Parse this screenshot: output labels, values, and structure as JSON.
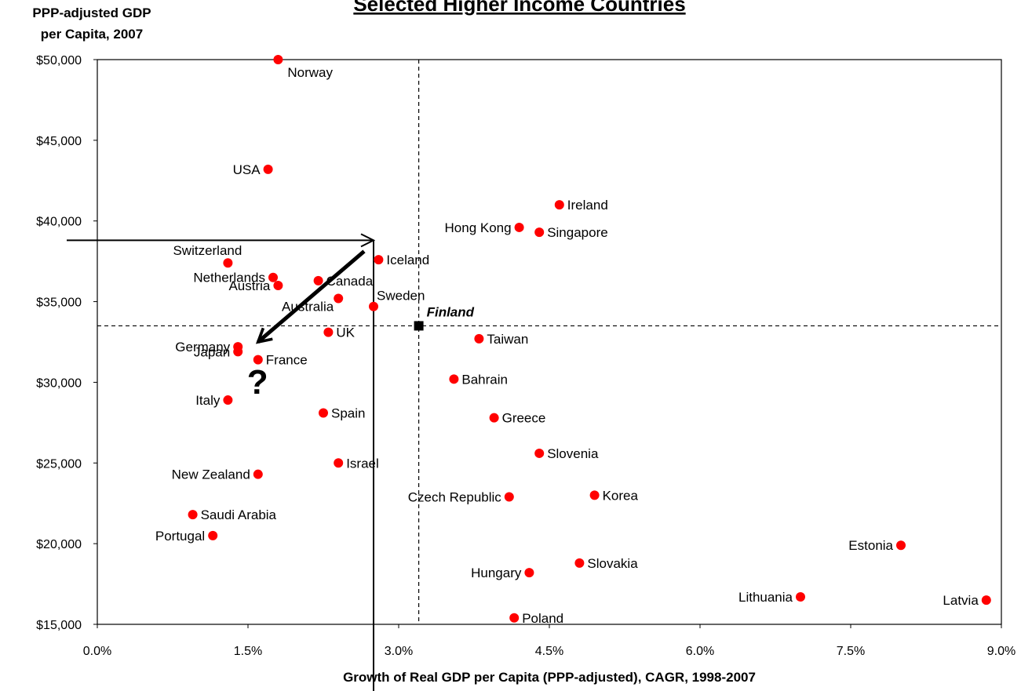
{
  "chart_data": {
    "type": "scatter",
    "title": "Selected Higher Income Countries",
    "ylabel_lines": [
      "PPP-adjusted GDP",
      "per Capita, 2007"
    ],
    "xlabel": "Growth of Real GDP per Capita (PPP-adjusted),  CAGR, 1998-2007",
    "xlim": [
      0.0,
      9.0
    ],
    "ylim": [
      15000,
      50000
    ],
    "x_ticks": [
      "0.0%",
      "1.5%",
      "3.0%",
      "4.5%",
      "6.0%",
      "7.5%",
      "9.0%"
    ],
    "y_ticks": [
      "$15,000",
      "$20,000",
      "$25,000",
      "$30,000",
      "$35,000",
      "$40,000",
      "$45,000",
      "$50,000"
    ],
    "grid": false,
    "point_color": "#ff0000",
    "highlight_color": "#000000",
    "reference_lines": {
      "x": 3.2,
      "y": 33500,
      "style": "dashed"
    },
    "points": [
      {
        "name": "Norway",
        "x": 1.8,
        "y": 50000,
        "label_pos": "below-right"
      },
      {
        "name": "USA",
        "x": 1.7,
        "y": 43200,
        "label_pos": "left"
      },
      {
        "name": "Ireland",
        "x": 4.6,
        "y": 41000,
        "label_pos": "right"
      },
      {
        "name": "Hong Kong",
        "x": 4.2,
        "y": 39600,
        "label_pos": "left"
      },
      {
        "name": "Singapore",
        "x": 4.4,
        "y": 39300,
        "label_pos": "right"
      },
      {
        "name": "Switzerland",
        "x": 1.3,
        "y": 37400,
        "label_pos": "above-left"
      },
      {
        "name": "Iceland",
        "x": 2.8,
        "y": 37600,
        "label_pos": "right"
      },
      {
        "name": "Netherlands",
        "x": 1.75,
        "y": 36500,
        "label_pos": "left"
      },
      {
        "name": "Canada",
        "x": 2.2,
        "y": 36300,
        "label_pos": "right"
      },
      {
        "name": "Austria",
        "x": 1.8,
        "y": 36000,
        "label_pos": "left"
      },
      {
        "name": "Australia",
        "x": 2.4,
        "y": 35200,
        "label_pos": "below-left"
      },
      {
        "name": "Sweden",
        "x": 2.75,
        "y": 34700,
        "label_pos": "above-right"
      },
      {
        "name": "UK",
        "x": 2.3,
        "y": 33100,
        "label_pos": "right"
      },
      {
        "name": "Taiwan",
        "x": 3.8,
        "y": 32700,
        "label_pos": "right"
      },
      {
        "name": "Germany",
        "x": 1.4,
        "y": 32200,
        "label_pos": "left"
      },
      {
        "name": "Japan",
        "x": 1.4,
        "y": 31900,
        "label_pos": "left"
      },
      {
        "name": "France",
        "x": 1.6,
        "y": 31400,
        "label_pos": "right"
      },
      {
        "name": "Bahrain",
        "x": 3.55,
        "y": 30200,
        "label_pos": "right"
      },
      {
        "name": "Italy",
        "x": 1.3,
        "y": 28900,
        "label_pos": "left"
      },
      {
        "name": "Spain",
        "x": 2.25,
        "y": 28100,
        "label_pos": "right"
      },
      {
        "name": "Greece",
        "x": 3.95,
        "y": 27800,
        "label_pos": "right"
      },
      {
        "name": "Slovenia",
        "x": 4.4,
        "y": 25600,
        "label_pos": "right"
      },
      {
        "name": "Israel",
        "x": 2.4,
        "y": 25000,
        "label_pos": "right"
      },
      {
        "name": "New Zealand",
        "x": 1.6,
        "y": 24300,
        "label_pos": "left"
      },
      {
        "name": "Czech Republic",
        "x": 4.1,
        "y": 22900,
        "label_pos": "left"
      },
      {
        "name": "Korea",
        "x": 4.95,
        "y": 23000,
        "label_pos": "right"
      },
      {
        "name": "Saudi Arabia",
        "x": 0.95,
        "y": 21800,
        "label_pos": "right"
      },
      {
        "name": "Portugal",
        "x": 1.15,
        "y": 20500,
        "label_pos": "left"
      },
      {
        "name": "Estonia",
        "x": 8.0,
        "y": 19900,
        "label_pos": "left"
      },
      {
        "name": "Slovakia",
        "x": 4.8,
        "y": 18800,
        "label_pos": "right"
      },
      {
        "name": "Hungary",
        "x": 4.3,
        "y": 18200,
        "label_pos": "left"
      },
      {
        "name": "Lithuania",
        "x": 7.0,
        "y": 16700,
        "label_pos": "left"
      },
      {
        "name": "Latvia",
        "x": 8.85,
        "y": 16500,
        "label_pos": "left"
      },
      {
        "name": "Poland",
        "x": 4.15,
        "y": 15400,
        "label_pos": "right"
      }
    ],
    "highlight": {
      "name": "Finland",
      "x": 3.2,
      "y": 33500,
      "marker": "square"
    },
    "annotations": {
      "question_mark": "?",
      "trajectory_corner": {
        "x": 2.75,
        "y": 38800
      },
      "trajectory_arrow_end": {
        "x": 1.6,
        "y": 32500
      }
    }
  }
}
